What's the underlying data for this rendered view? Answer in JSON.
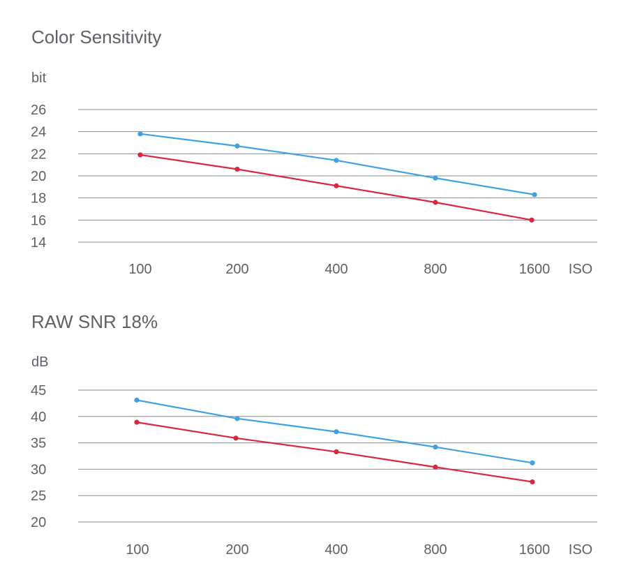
{
  "chart_data": [
    {
      "type": "line",
      "title": "Color Sensitivity",
      "ylabel": "bit",
      "xlabel": "ISO",
      "categories": [
        "100",
        "200",
        "400",
        "800",
        "1600"
      ],
      "y_ticks": [
        "26",
        "24",
        "22",
        "20",
        "18",
        "16",
        "14"
      ],
      "ylim": [
        14,
        26
      ],
      "grid": true,
      "series": [
        {
          "color": "#3ea1e5",
          "values": [
            23.8,
            22.7,
            21.4,
            19.8,
            18.3
          ]
        },
        {
          "color": "#d9273f",
          "values": [
            21.9,
            20.6,
            19.1,
            17.6,
            16.0
          ]
        }
      ]
    },
    {
      "type": "line",
      "title": "RAW SNR 18%",
      "ylabel": "dB",
      "xlabel": "ISO",
      "categories": [
        "100",
        "200",
        "400",
        "800",
        "1600"
      ],
      "y_ticks": [
        "45",
        "40",
        "35",
        "30",
        "25",
        "20"
      ],
      "ylim": [
        20,
        45
      ],
      "grid": true,
      "series": [
        {
          "color": "#3ea1e5",
          "values": [
            43.1,
            39.6,
            37.1,
            34.2,
            31.2
          ]
        },
        {
          "color": "#d9273f",
          "values": [
            38.9,
            35.9,
            33.3,
            30.4,
            27.6
          ]
        }
      ]
    }
  ]
}
